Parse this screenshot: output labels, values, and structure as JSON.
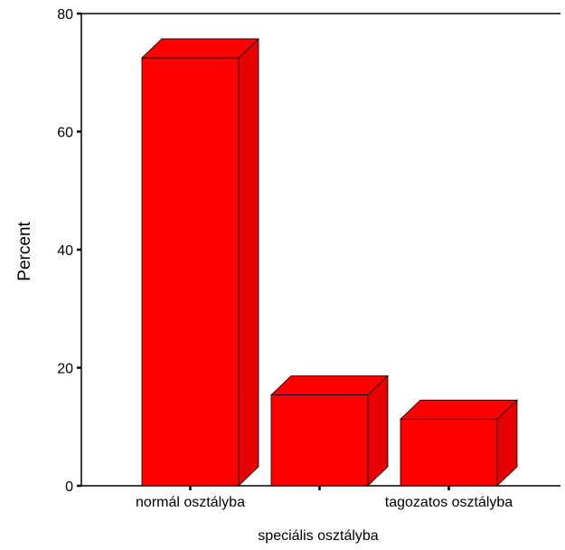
{
  "chart_data": {
    "type": "bar",
    "style": "3d",
    "categories": [
      "normál osztályba",
      "",
      "tagozatos osztályba"
    ],
    "values": [
      72.5,
      15.4,
      11.3
    ],
    "xlabel": "speciális osztályba",
    "ylabel": "Percent",
    "ylim": [
      0,
      80
    ],
    "yticks": [
      0,
      20,
      40,
      60,
      80
    ],
    "grid": false,
    "legend": "none",
    "colors": {
      "bar_face": "#ff0000",
      "bar_top": "#ff0000",
      "bar_side": "#e60000",
      "outline": "#000000"
    }
  }
}
